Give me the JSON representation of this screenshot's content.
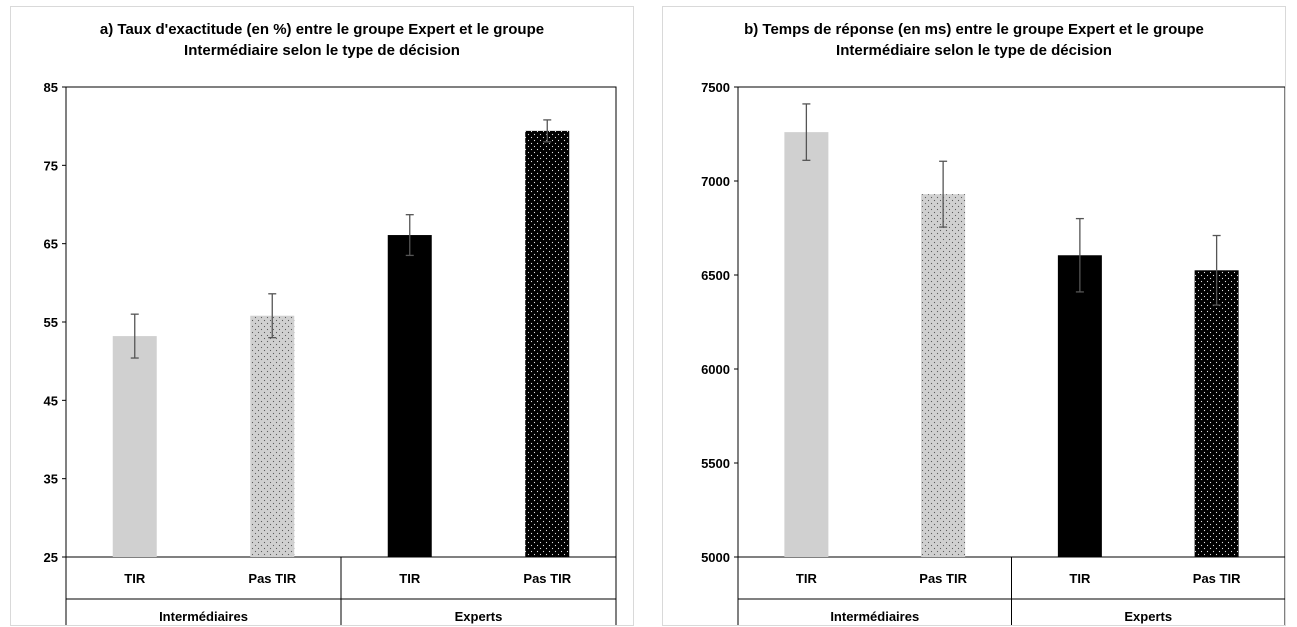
{
  "chart_data": [
    {
      "type": "bar",
      "title_line1": "a) Taux d'exactitude (en %) entre le groupe Expert et le groupe",
      "title_line2": "Intermédiaire selon le type de décision",
      "ylim": [
        25,
        85
      ],
      "yticks": [
        "25",
        "35",
        "45",
        "55",
        "65",
        "75",
        "85"
      ],
      "categories": [
        "TIR",
        "Pas TIR",
        "TIR",
        "Pas TIR"
      ],
      "groups": [
        "Intermédiaires",
        "Experts"
      ],
      "values": [
        53.2,
        55.8,
        66.1,
        79.4
      ],
      "errors": [
        2.8,
        2.8,
        2.6,
        1.4
      ],
      "bar_styles": [
        "light-solid",
        "light-dotted",
        "dark-solid",
        "dark-dotted"
      ],
      "colors": {
        "light": "#d0d0d0",
        "dark": "#000000",
        "error_bar": "#555555"
      },
      "grid": false,
      "legend": "none"
    },
    {
      "type": "bar",
      "title_line1": "b) Temps de réponse (en ms) entre le groupe Expert et le groupe",
      "title_line2": "Intermédiaire selon le type de décision",
      "ylim": [
        5000,
        7500
      ],
      "yticks": [
        "5000",
        "5500",
        "6000",
        "6500",
        "7000",
        "7500"
      ],
      "categories": [
        "TIR",
        "Pas TIR",
        "TIR",
        "Pas TIR"
      ],
      "groups": [
        "Intermédiaires",
        "Experts"
      ],
      "values": [
        7260,
        6930,
        6605,
        6525
      ],
      "errors": [
        150,
        175,
        195,
        185
      ],
      "bar_styles": [
        "light-solid",
        "light-dotted",
        "dark-solid",
        "dark-dotted"
      ],
      "colors": {
        "light": "#d0d0d0",
        "dark": "#000000",
        "error_bar": "#555555"
      },
      "grid": false,
      "legend": "none"
    }
  ]
}
